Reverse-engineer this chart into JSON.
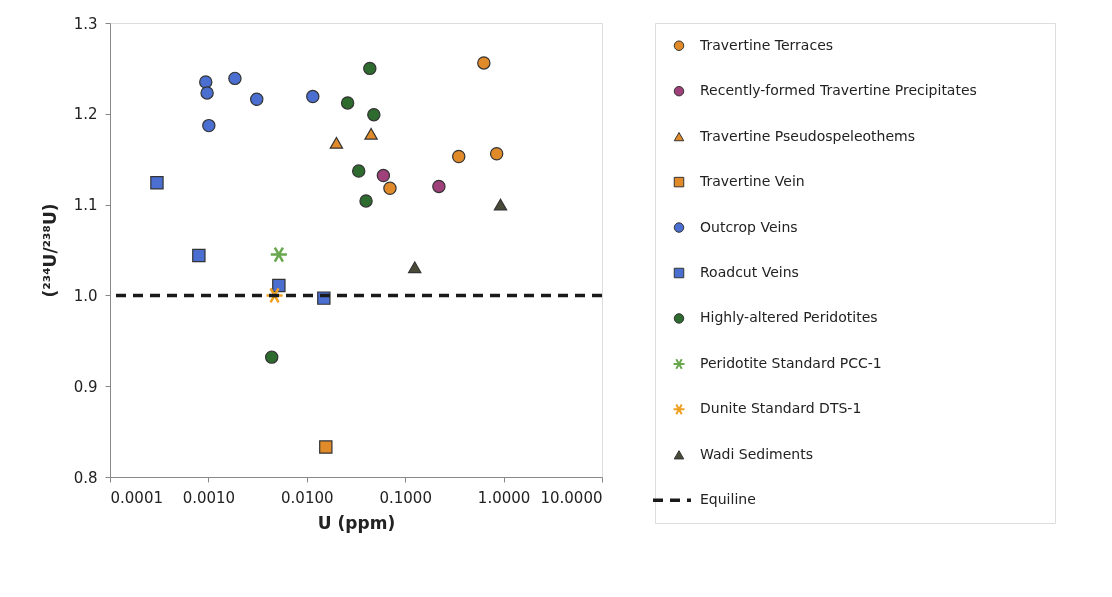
{
  "chart_data": {
    "type": "scatter",
    "xlabel": "U (ppm)",
    "ylabel": "(²³⁴U/²³⁸U)",
    "log": "x",
    "grid": false,
    "legend": "right",
    "xlim": [
      0.0001,
      10
    ],
    "ylim": [
      0.8,
      1.3
    ],
    "xticks": [
      {
        "value": 0.0001,
        "label": "0.0001"
      },
      {
        "value": 0.001,
        "label": "0.0010"
      },
      {
        "value": 0.01,
        "label": "0.0100"
      },
      {
        "value": 0.1,
        "label": "0.1000"
      },
      {
        "value": 1,
        "label": "1.0000"
      },
      {
        "value": 10,
        "label": "10.0000"
      }
    ],
    "yticks": [
      {
        "value": 0.8,
        "label": "0.8"
      },
      {
        "value": 0.9,
        "label": "0.9"
      },
      {
        "value": 1.0,
        "label": "1.0"
      },
      {
        "value": 1.1,
        "label": "1.1"
      },
      {
        "value": 1.2,
        "label": "1.2"
      },
      {
        "value": 1.3,
        "label": "1.3"
      }
    ],
    "series": [
      {
        "name": "Travertine Terraces",
        "color": "#e08a2a",
        "marker": "circle",
        "x": [
          0.63,
          0.35,
          0.85,
          0.07
        ],
        "values": [
          1.256,
          1.153,
          1.156,
          1.118
        ]
      },
      {
        "name": "Recently-formed Travertine Precipitates",
        "color": "#a0407a",
        "marker": "circle",
        "x": [
          0.06,
          0.22
        ],
        "values": [
          1.132,
          1.12
        ]
      },
      {
        "name": "Travertine Pseudospeleothems",
        "color": "#e08a2a",
        "marker": "triangle",
        "x": [
          0.02,
          0.045
        ],
        "values": [
          1.168,
          1.178
        ]
      },
      {
        "name": "Travertine Vein",
        "color": "#e08a2a",
        "marker": "square",
        "x": [
          0.0156
        ],
        "values": [
          0.833
        ]
      },
      {
        "name": "Outcrop Veins",
        "color": "#4a6fd0",
        "marker": "circle",
        "x": [
          0.00094,
          0.00097,
          0.00101,
          0.00186,
          0.0031,
          0.0115
        ],
        "values": [
          1.235,
          1.223,
          1.187,
          1.239,
          1.216,
          1.219
        ]
      },
      {
        "name": "Roadcut Veins",
        "color": "#4a6fd0",
        "marker": "square",
        "x": [
          0.0003,
          0.0008,
          0.0052,
          0.0149
        ],
        "values": [
          1.124,
          1.044,
          1.011,
          0.997
        ]
      },
      {
        "name": "Highly-altered Peridotites",
        "color": "#2e6b2e",
        "marker": "circle",
        "x": [
          0.0044,
          0.0437,
          0.026,
          0.048,
          0.0337,
          0.04
        ],
        "values": [
          0.932,
          1.25,
          1.212,
          1.199,
          1.137,
          1.104
        ]
      },
      {
        "name": "Peridotite Standard PCC-1",
        "color": "#6aa84f",
        "marker": "cross",
        "x": [
          0.0052
        ],
        "values": [
          1.045
        ]
      },
      {
        "name": "Dunite Standard DTS-1",
        "color": "#f0a020",
        "marker": "cross",
        "x": [
          0.0047
        ],
        "values": [
          1.0
        ]
      },
      {
        "name": "Wadi Sediments",
        "color": "#4a4a38",
        "marker": "triangle",
        "x": [
          0.93,
          0.125
        ],
        "values": [
          1.1,
          1.031
        ]
      }
    ],
    "ref_lines": [
      {
        "axis": "y",
        "value": 1.0,
        "label": "Equiline",
        "color": "#1a1a1a",
        "line_style": "dashed"
      }
    ]
  }
}
